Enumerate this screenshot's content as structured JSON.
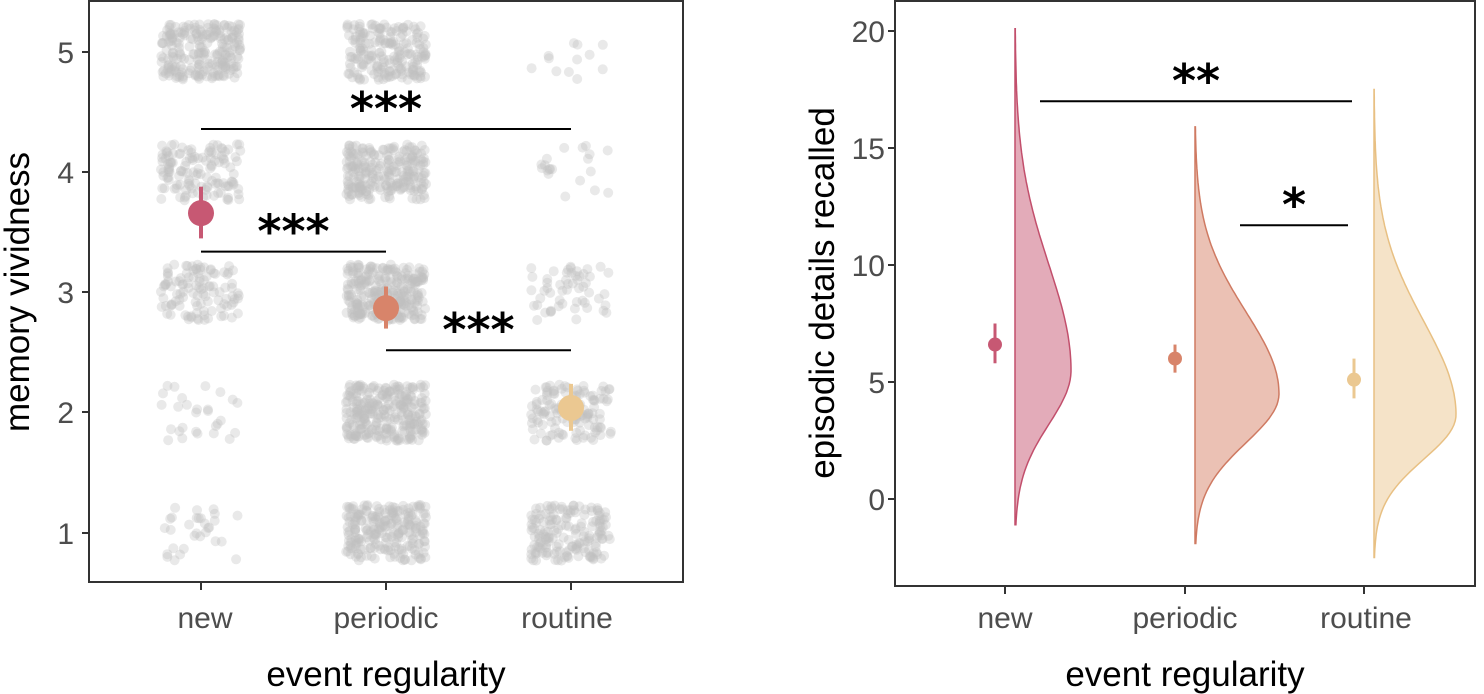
{
  "chart_data": [
    {
      "type": "scatter",
      "ylabel": "memory vividness",
      "xlabel": "event regularity",
      "categories": [
        "new",
        "periodic",
        "routine"
      ],
      "yticks": [
        1,
        2,
        3,
        4,
        5
      ],
      "ylim": [
        0.5,
        5.4
      ],
      "colors": [
        "#c75873",
        "#d8846a",
        "#ebc891"
      ],
      "means": [
        {
          "category": "new",
          "mean": 3.66,
          "low": 3.45,
          "high": 3.88
        },
        {
          "category": "periodic",
          "mean": 2.87,
          "low": 2.7,
          "high": 3.05
        },
        {
          "category": "routine",
          "mean": 2.04,
          "low": 1.85,
          "high": 2.24
        }
      ],
      "raw_point_counts": {
        "new": {
          "1": 30,
          "2": 28,
          "3": 110,
          "4": 130,
          "5": 230
        },
        "periodic": {
          "1": 230,
          "2": 280,
          "3": 280,
          "4": 240,
          "5": 200
        },
        "routine": {
          "1": 170,
          "2": 130,
          "3": 55,
          "4": 20,
          "5": 12
        }
      },
      "comparisons": [
        {
          "from": "new",
          "to": "routine",
          "y": 4.36,
          "label": "***"
        },
        {
          "from": "new",
          "to": "periodic",
          "y": 3.34,
          "label": "***"
        },
        {
          "from": "periodic",
          "to": "routine",
          "y": 2.52,
          "label": "***"
        }
      ]
    },
    {
      "type": "area",
      "ylabel": "episodic details recalled",
      "xlabel": "event regularity",
      "categories": [
        "new",
        "periodic",
        "routine"
      ],
      "yticks": [
        0,
        5,
        10,
        15,
        20
      ],
      "ylim": [
        -3.7,
        21.2
      ],
      "colors": [
        "#c75873",
        "#d8846a",
        "#ebc891"
      ],
      "means": [
        {
          "category": "new",
          "mean": 6.6,
          "low": 5.8,
          "high": 7.5
        },
        {
          "category": "periodic",
          "mean": 6.0,
          "low": 5.4,
          "high": 6.6
        },
        {
          "category": "routine",
          "mean": 5.1,
          "low": 4.3,
          "high": 6.0
        }
      ],
      "densities": [
        {
          "category": "new",
          "min": -1.1,
          "max": 20.1,
          "peak_at": 5.5
        },
        {
          "category": "periodic",
          "min": -1.9,
          "max": 15.9,
          "peak_at": 4.5
        },
        {
          "category": "routine",
          "min": -2.5,
          "max": 17.5,
          "peak_at": 3.6
        }
      ],
      "comparisons": [
        {
          "from": "new",
          "to": "routine",
          "y": 17.0,
          "label": "**"
        },
        {
          "from": "periodic",
          "to": "routine",
          "y": 11.7,
          "label": "*"
        }
      ]
    }
  ]
}
